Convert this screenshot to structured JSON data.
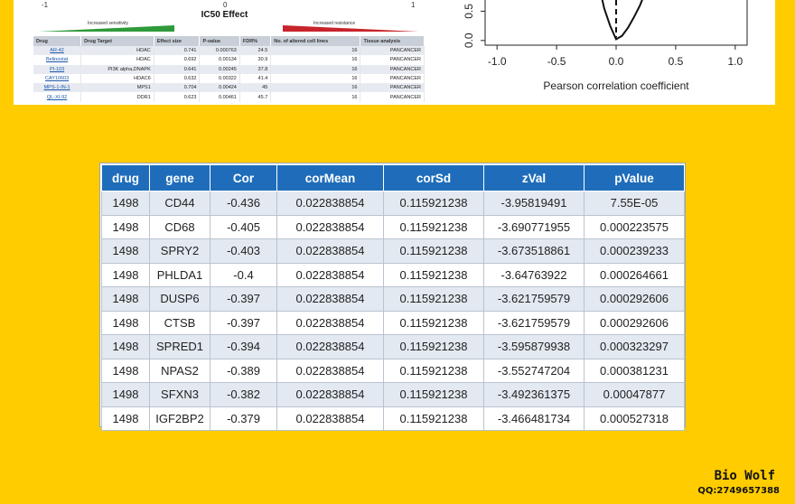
{
  "ic50_panel": {
    "axis_left": "-1",
    "axis_mid": "0",
    "axis_right": "1",
    "title": "IC50 Effect",
    "label_sensitivity": "Increased sensitivity",
    "label_resistance": "Increased resistance",
    "colors": {
      "sensitivity": "#2e9a3a",
      "resistance": "#c8242b",
      "link": "#1a56a8"
    },
    "columns": [
      "Drug",
      "Drug Target",
      "Effect size",
      "P-value",
      "FDR%",
      "No. of altered cell lines",
      "Tissue analysis"
    ],
    "rows": [
      [
        "AR-42",
        "HDAC",
        "0.741",
        "0.000763",
        "24.5",
        "16",
        "PANCANCER"
      ],
      [
        "Belinostat",
        "HDAC",
        "0.692",
        "0.00134",
        "30.9",
        "16",
        "PANCANCER"
      ],
      [
        "PI-103",
        "PI3K alpha,DNAPK",
        "0.641",
        "0.00245",
        "37.8",
        "16",
        "PANCANCER"
      ],
      [
        "CAY10603",
        "HDAC6",
        "0.632",
        "0.00322",
        "41.4",
        "16",
        "PANCANCER"
      ],
      [
        "MPS-1-IN-1",
        "MPS1",
        "0.704",
        "0.00424",
        "45",
        "16",
        "PANCANCER"
      ],
      [
        "QL-XI-92",
        "DDR1",
        "0.623",
        "0.00461",
        "45.7",
        "16",
        "PANCANCER"
      ]
    ]
  },
  "scatter_panel": {
    "xlabel": "Pearson correlation coefficient",
    "x_ticks": [
      "-1.0",
      "-0.5",
      "0.0",
      "0.5",
      "1.0"
    ],
    "x_tick_values": [
      -1.0,
      -0.5,
      0.0,
      0.5,
      1.0
    ],
    "y_ticks": [
      "0.5",
      "0.0"
    ],
    "y_tick_values": [
      0.5,
      0.0
    ],
    "xlim": [
      -1.1,
      1.1
    ],
    "curve_points": [
      [
        -0.15,
        1.0
      ],
      [
        -0.1,
        0.55
      ],
      [
        -0.05,
        0.25
      ],
      [
        0.0,
        0.02
      ],
      [
        0.05,
        0.08
      ],
      [
        0.1,
        0.22
      ],
      [
        0.15,
        0.4
      ],
      [
        0.2,
        0.6
      ],
      [
        0.25,
        0.85
      ],
      [
        0.28,
        1.0
      ]
    ],
    "reference_x": 0.0
  },
  "main_table": {
    "columns": [
      "drug",
      "gene",
      "Cor",
      "corMean",
      "corSd",
      "zVal",
      "pValue"
    ],
    "header_color": "#1f6dba",
    "rows": [
      [
        "1498",
        "CD44",
        "-0.436",
        "0.022838854",
        "0.115921238",
        "-3.95819491",
        "7.55E-05"
      ],
      [
        "1498",
        "CD68",
        "-0.405",
        "0.022838854",
        "0.115921238",
        "-3.690771955",
        "0.000223575"
      ],
      [
        "1498",
        "SPRY2",
        "-0.403",
        "0.022838854",
        "0.115921238",
        "-3.673518861",
        "0.000239233"
      ],
      [
        "1498",
        "PHLDA1",
        "-0.4",
        "0.022838854",
        "0.115921238",
        "-3.64763922",
        "0.000264661"
      ],
      [
        "1498",
        "DUSP6",
        "-0.397",
        "0.022838854",
        "0.115921238",
        "-3.621759579",
        "0.000292606"
      ],
      [
        "1498",
        "CTSB",
        "-0.397",
        "0.022838854",
        "0.115921238",
        "-3.621759579",
        "0.000292606"
      ],
      [
        "1498",
        "SPRED1",
        "-0.394",
        "0.022838854",
        "0.115921238",
        "-3.595879938",
        "0.000323297"
      ],
      [
        "1498",
        "NPAS2",
        "-0.389",
        "0.022838854",
        "0.115921238",
        "-3.552747204",
        "0.000381231"
      ],
      [
        "1498",
        "SFXN3",
        "-0.382",
        "0.022838854",
        "0.115921238",
        "-3.492361375",
        "0.00047877"
      ],
      [
        "1498",
        "IGF2BP2",
        "-0.379",
        "0.022838854",
        "0.115921238",
        "-3.466481734",
        "0.000527318"
      ]
    ]
  },
  "watermark": {
    "title": "Bio Wolf",
    "qq": "QQ:2749657388"
  },
  "background_color": "#FFCC00"
}
